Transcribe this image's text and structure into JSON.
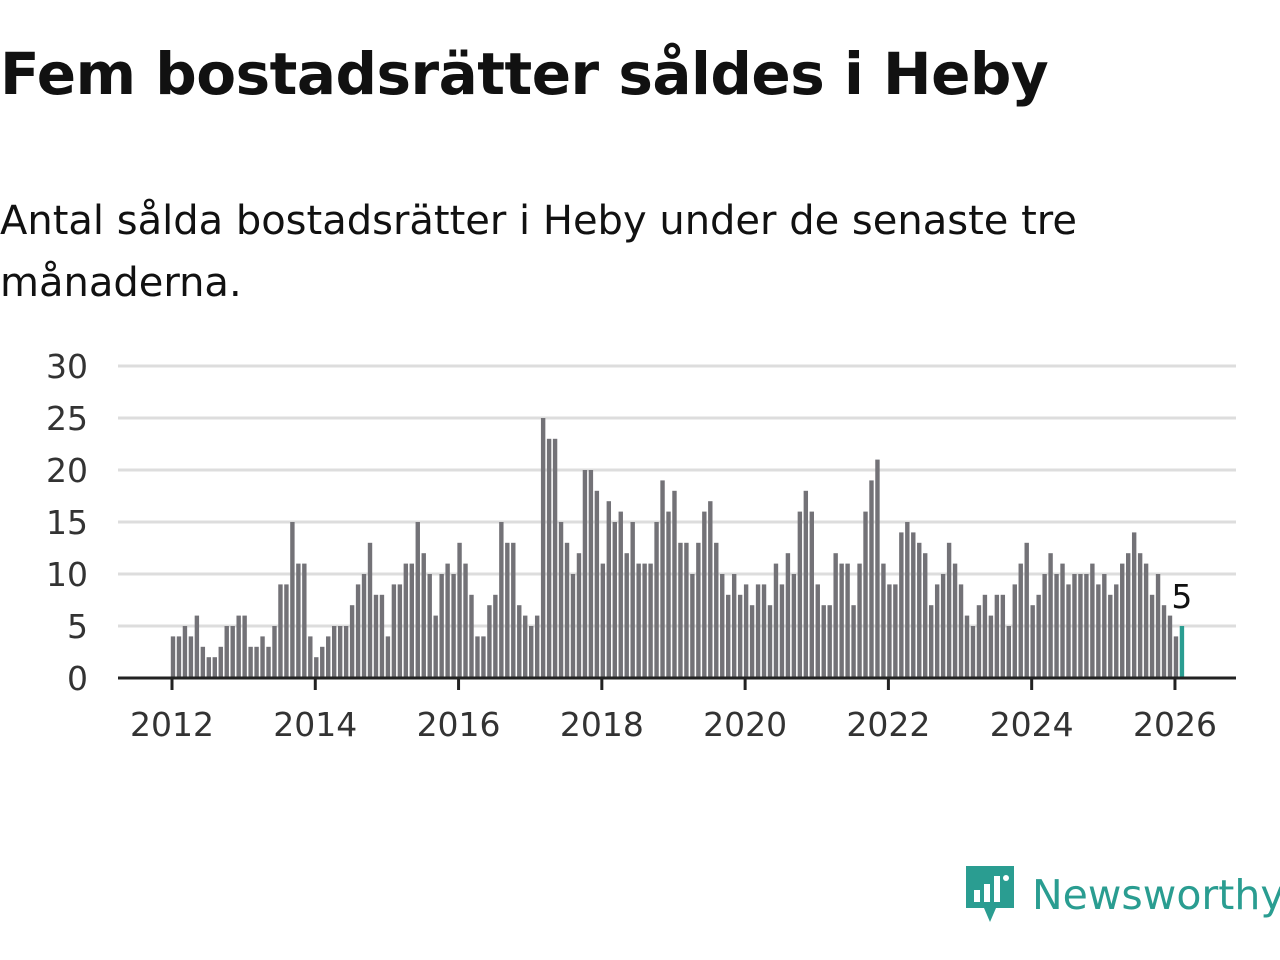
{
  "title": "Fem bostadsrätter såldes i Heby",
  "subtitle": "Antal sålda bostadsrätter i Heby under de senaste tre månaderna.",
  "brand": {
    "name": "Newsworthy",
    "icon": "newsworthy-logo-icon"
  },
  "colors": {
    "bar": "#737277",
    "highlight": "#2a9d91",
    "grid": "#dddddd",
    "axis": "#222222",
    "brand": "#2a9d91"
  },
  "chart_data": {
    "type": "bar",
    "title": "Fem bostadsrätter såldes i Heby",
    "xlabel": "",
    "ylabel": "",
    "ylim": [
      0,
      30
    ],
    "yticks": [
      0,
      5,
      10,
      15,
      20,
      25,
      30
    ],
    "xticks": [
      "2012",
      "2014",
      "2016",
      "2018",
      "2020",
      "2022",
      "2024",
      "2026"
    ],
    "start": "2012-01",
    "end": "2026-01",
    "grid": true,
    "values": [
      4,
      4,
      5,
      4,
      6,
      3,
      2,
      2,
      3,
      5,
      5,
      6,
      6,
      3,
      3,
      4,
      3,
      5,
      9,
      9,
      15,
      11,
      11,
      4,
      2,
      3,
      4,
      5,
      5,
      5,
      7,
      9,
      10,
      13,
      8,
      8,
      4,
      9,
      9,
      11,
      11,
      15,
      12,
      10,
      6,
      10,
      11,
      10,
      13,
      11,
      8,
      4,
      4,
      7,
      8,
      15,
      13,
      13,
      7,
      6,
      5,
      6,
      25,
      23,
      23,
      15,
      13,
      10,
      12,
      20,
      20,
      18,
      11,
      17,
      15,
      16,
      12,
      15,
      11,
      11,
      11,
      15,
      19,
      16,
      18,
      13,
      13,
      10,
      13,
      16,
      17,
      13,
      10,
      8,
      10,
      8,
      9,
      7,
      9,
      9,
      7,
      11,
      9,
      12,
      10,
      16,
      18,
      16,
      9,
      7,
      7,
      12,
      11,
      11,
      7,
      11,
      16,
      19,
      21,
      11,
      9,
      9,
      14,
      15,
      14,
      13,
      12,
      7,
      9,
      10,
      13,
      11,
      9,
      6,
      5,
      7,
      8,
      6,
      8,
      8,
      5,
      9,
      11,
      13,
      7,
      8,
      10,
      12,
      10,
      11,
      9,
      10,
      10,
      10,
      11,
      9,
      10,
      8,
      9,
      11,
      12,
      14,
      12,
      11,
      8,
      10,
      7,
      6,
      4,
      5
    ],
    "highlight_label": "5",
    "highlight_index": 169
  }
}
